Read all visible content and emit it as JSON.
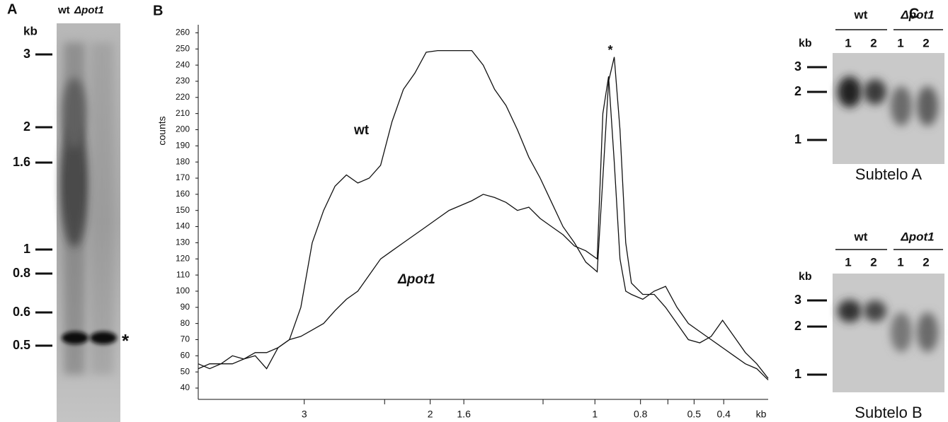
{
  "panel_a": {
    "label": "A",
    "lanes_header": [
      "wt",
      "Δpot1"
    ],
    "unit": "kb",
    "markers": [
      "3",
      "2",
      "1.6",
      "1",
      "0.8",
      "0.6",
      "0.5"
    ],
    "band_note": "*"
  },
  "chart_data": {
    "type": "line",
    "label": "B",
    "y_label": "counts",
    "x_unit": "kb",
    "annotations": [
      "wt",
      "Δpot1",
      "*"
    ],
    "x": [
      0,
      2,
      4,
      6,
      8,
      10,
      12,
      14,
      16,
      18,
      20,
      22,
      24,
      26,
      28,
      30,
      32,
      34,
      36,
      38,
      40,
      42,
      44,
      46,
      48,
      50,
      52,
      54,
      56,
      58,
      60,
      62,
      64,
      66,
      68,
      70,
      71,
      72,
      73,
      74,
      75,
      76,
      78,
      80,
      82,
      84,
      86,
      88,
      90,
      92,
      94,
      96,
      98,
      100
    ],
    "series": [
      {
        "name": "wt",
        "color": "#111111",
        "values": [
          55,
          52,
          55,
          55,
          58,
          60,
          52,
          65,
          70,
          90,
          130,
          150,
          165,
          172,
          167,
          170,
          178,
          205,
          225,
          235,
          248,
          249,
          249,
          249,
          249,
          240,
          225,
          215,
          200,
          183,
          170,
          155,
          140,
          130,
          118,
          112,
          170,
          230,
          245,
          200,
          130,
          105,
          98,
          98,
          90,
          80,
          70,
          68,
          72,
          82,
          72,
          62,
          55,
          46
        ]
      },
      {
        "name": "Δpot1",
        "color": "#111111",
        "values": [
          52,
          55,
          55,
          60,
          58,
          62,
          62,
          65,
          70,
          72,
          76,
          80,
          88,
          95,
          100,
          110,
          120,
          125,
          130,
          135,
          140,
          145,
          150,
          153,
          156,
          160,
          158,
          155,
          150,
          152,
          145,
          140,
          135,
          128,
          125,
          120,
          210,
          233,
          180,
          120,
          100,
          98,
          95,
          100,
          103,
          90,
          80,
          75,
          70,
          65,
          60,
          55,
          52,
          45
        ]
      }
    ],
    "xlim": [
      0,
      100
    ],
    "xticks": [
      {
        "value": 18.6,
        "label": "3"
      },
      {
        "value": 32.7,
        "label": null
      },
      {
        "value": 40.7,
        "label": "2"
      },
      {
        "value": 46.6,
        "label": "1.6"
      },
      {
        "value": 60.5,
        "label": null
      },
      {
        "value": 69.6,
        "label": "1"
      },
      {
        "value": 77.6,
        "label": "0.8"
      },
      {
        "value": 82.4,
        "label": null
      },
      {
        "value": 87,
        "label": "0.5"
      },
      {
        "value": 92.2,
        "label": "0.4"
      }
    ],
    "ylim": [
      33,
      265
    ],
    "yticks": [
      40,
      50,
      60,
      70,
      80,
      90,
      100,
      110,
      120,
      130,
      140,
      150,
      160,
      170,
      180,
      190,
      200,
      210,
      220,
      230,
      240,
      250,
      260
    ]
  },
  "panel_c": {
    "label": "C",
    "blots": [
      {
        "header": [
          "wt",
          "Δpot1"
        ],
        "unit": "kb",
        "lanes": [
          "1",
          "2",
          "1",
          "2"
        ],
        "markers": [
          "3",
          "2",
          "1"
        ],
        "caption": "Subtelo A"
      },
      {
        "header": [
          "wt",
          "Δpot1"
        ],
        "unit": "kb",
        "lanes": [
          "1",
          "2",
          "1",
          "2"
        ],
        "markers": [
          "3",
          "2",
          "1"
        ],
        "caption": "Subtelo B"
      }
    ]
  }
}
